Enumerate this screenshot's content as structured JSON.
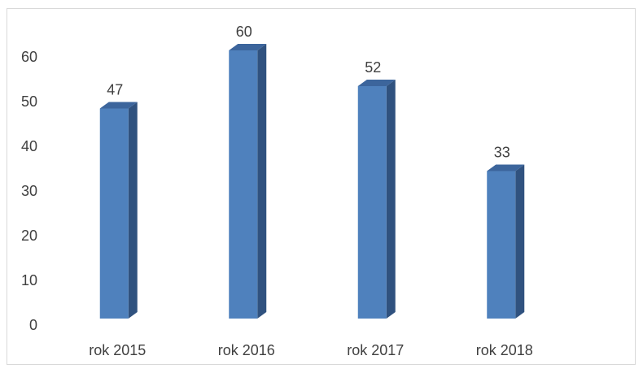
{
  "chart_data": {
    "type": "bar3d",
    "categories": [
      "rok 2015",
      "rok 2016",
      "rok 2017",
      "rok 2018"
    ],
    "values": [
      47,
      60,
      52,
      33
    ],
    "color": "#4f81bd",
    "side_color": "#30527f",
    "top_color": "#3c659c",
    "ylim": [
      0,
      60
    ],
    "yticks": [
      0,
      10,
      20,
      30,
      40,
      50,
      60
    ],
    "grid": false
  }
}
